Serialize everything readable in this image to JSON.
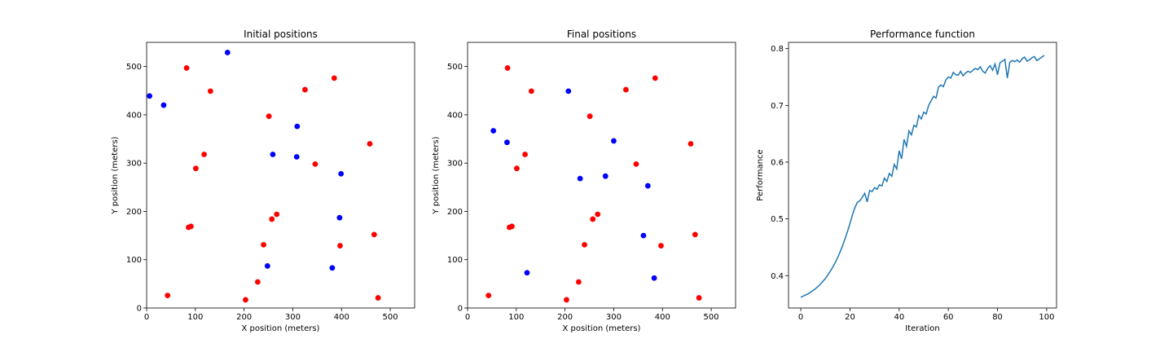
{
  "chart_data": [
    {
      "type": "scatter",
      "title": "Initial positions",
      "xlabel": "X position (meters)",
      "ylabel": "Y position (meters)",
      "xlim": [
        0,
        550
      ],
      "ylim": [
        0,
        550
      ],
      "xticks": [
        0,
        100,
        200,
        300,
        400,
        500
      ],
      "yticks": [
        0,
        100,
        200,
        300,
        400,
        500
      ],
      "colors": {
        "red": "#ff0000",
        "blue": "#0000ff"
      },
      "series": [
        {
          "color": "#ff0000",
          "points": [
            [
              82,
              497
            ],
            [
              131,
              449
            ],
            [
              251,
              397
            ],
            [
              325,
              452
            ],
            [
              385,
              476
            ],
            [
              118,
              318
            ],
            [
              101,
              289
            ],
            [
              346,
              298
            ],
            [
              458,
              340
            ],
            [
              86,
              167
            ],
            [
              91,
              169
            ],
            [
              267,
              194
            ],
            [
              257,
              184
            ],
            [
              240,
              131
            ],
            [
              397,
              129
            ],
            [
              467,
              152
            ],
            [
              228,
              54
            ],
            [
              43,
              26
            ],
            [
              203,
              17
            ],
            [
              475,
              21
            ]
          ]
        },
        {
          "color": "#0000ff",
          "points": [
            [
              166,
              529
            ],
            [
              6,
              439
            ],
            [
              35,
              420
            ],
            [
              309,
              376
            ],
            [
              259,
              318
            ],
            [
              308,
              313
            ],
            [
              399,
              278
            ],
            [
              396,
              187
            ],
            [
              248,
              87
            ],
            [
              381,
              83
            ]
          ]
        }
      ]
    },
    {
      "type": "scatter",
      "title": "Final positions",
      "xlabel": "X position (meters)",
      "ylabel": "Y position (meters)",
      "xlim": [
        0,
        550
      ],
      "ylim": [
        0,
        550
      ],
      "xticks": [
        0,
        100,
        200,
        300,
        400,
        500
      ],
      "yticks": [
        0,
        100,
        200,
        300,
        400,
        500
      ],
      "colors": {
        "red": "#ff0000",
        "blue": "#0000ff"
      },
      "series": [
        {
          "color": "#ff0000",
          "points": [
            [
              82,
              497
            ],
            [
              131,
              449
            ],
            [
              251,
              397
            ],
            [
              325,
              452
            ],
            [
              385,
              476
            ],
            [
              118,
              318
            ],
            [
              101,
              289
            ],
            [
              346,
              298
            ],
            [
              458,
              340
            ],
            [
              86,
              167
            ],
            [
              91,
              169
            ],
            [
              267,
              194
            ],
            [
              257,
              184
            ],
            [
              240,
              131
            ],
            [
              397,
              129
            ],
            [
              467,
              152
            ],
            [
              228,
              54
            ],
            [
              43,
              26
            ],
            [
              203,
              17
            ],
            [
              475,
              21
            ]
          ]
        },
        {
          "color": "#0000ff",
          "points": [
            [
              207,
              449
            ],
            [
              53,
              367
            ],
            [
              81,
              343
            ],
            [
              300,
              346
            ],
            [
              283,
              273
            ],
            [
              231,
              268
            ],
            [
              370,
              253
            ],
            [
              361,
              150
            ],
            [
              122,
              73
            ],
            [
              383,
              62
            ]
          ]
        }
      ]
    },
    {
      "type": "line",
      "title": "Performance function",
      "xlabel": "Iteration",
      "ylabel": "Performance",
      "xlim": [
        -5,
        104
      ],
      "ylim": [
        0.343,
        0.811
      ],
      "xticks": [
        0,
        20,
        40,
        60,
        80,
        100
      ],
      "yticks": [
        0.4,
        0.5,
        0.6,
        0.7,
        0.8
      ],
      "line_color": "#1f77b4",
      "series": [
        {
          "x": [
            0,
            1,
            2,
            3,
            4,
            5,
            6,
            7,
            8,
            9,
            10,
            11,
            12,
            13,
            14,
            15,
            16,
            17,
            18,
            19,
            20,
            21,
            22,
            23,
            24,
            25,
            26,
            27,
            28,
            29,
            30,
            31,
            32,
            33,
            34,
            35,
            36,
            37,
            38,
            39,
            40,
            41,
            42,
            43,
            44,
            45,
            46,
            47,
            48,
            49,
            50,
            51,
            52,
            53,
            54,
            55,
            56,
            57,
            58,
            59,
            60,
            61,
            62,
            63,
            64,
            65,
            66,
            67,
            68,
            69,
            70,
            71,
            72,
            73,
            74,
            75,
            76,
            77,
            78,
            79,
            80,
            81,
            82,
            83,
            84,
            85,
            86,
            87,
            88,
            89,
            90,
            91,
            92,
            93,
            94,
            95,
            96,
            97,
            98,
            99
          ],
          "y": [
            0.362,
            0.364,
            0.366,
            0.368,
            0.371,
            0.374,
            0.377,
            0.381,
            0.385,
            0.39,
            0.395,
            0.401,
            0.408,
            0.415,
            0.423,
            0.432,
            0.442,
            0.453,
            0.465,
            0.478,
            0.492,
            0.507,
            0.52,
            0.529,
            0.532,
            0.538,
            0.545,
            0.53,
            0.55,
            0.548,
            0.555,
            0.552,
            0.56,
            0.558,
            0.572,
            0.566,
            0.58,
            0.575,
            0.596,
            0.588,
            0.62,
            0.606,
            0.64,
            0.628,
            0.655,
            0.648,
            0.665,
            0.662,
            0.682,
            0.676,
            0.688,
            0.685,
            0.7,
            0.708,
            0.716,
            0.713,
            0.732,
            0.736,
            0.733,
            0.745,
            0.75,
            0.748,
            0.758,
            0.754,
            0.753,
            0.76,
            0.752,
            0.757,
            0.76,
            0.758,
            0.762,
            0.765,
            0.763,
            0.768,
            0.76,
            0.757,
            0.765,
            0.77,
            0.762,
            0.773,
            0.754,
            0.775,
            0.778,
            0.781,
            0.748,
            0.776,
            0.779,
            0.777,
            0.78,
            0.776,
            0.782,
            0.785,
            0.778,
            0.78,
            0.784,
            0.786,
            0.779,
            0.782,
            0.785,
            0.788
          ]
        }
      ]
    }
  ]
}
